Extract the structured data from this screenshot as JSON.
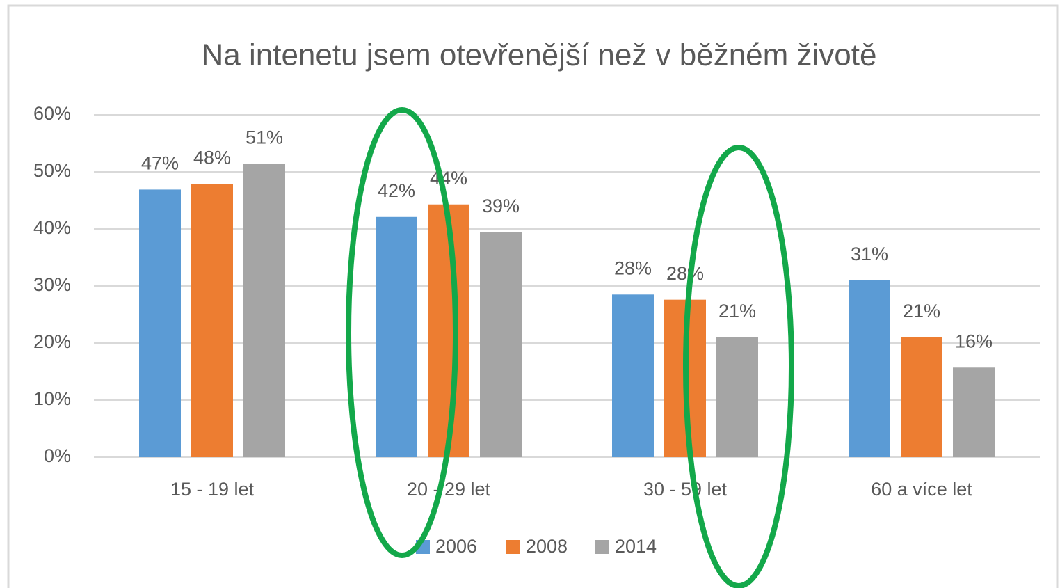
{
  "chart_data": {
    "type": "bar",
    "title": "Na intenetu jsem otevřenější než v běžném životě",
    "categories": [
      "15 - 19 let",
      "20 - 29 let",
      "30 - 59 let",
      "60 a více let"
    ],
    "series": [
      {
        "name": "2006",
        "color": "#5b9bd5",
        "values": [
          46.9,
          42.1,
          28.5,
          31.0
        ],
        "value_labels": [
          "47%",
          "42%",
          "28%",
          "31%"
        ]
      },
      {
        "name": "2008",
        "color": "#ed7d31",
        "values": [
          47.9,
          44.3,
          27.6,
          21.0
        ],
        "value_labels": [
          "48%",
          "44%",
          "28%",
          "21%"
        ]
      },
      {
        "name": "2014",
        "color": "#a5a5a5",
        "values": [
          51.4,
          39.4,
          21.0,
          15.7
        ],
        "value_labels": [
          "51%",
          "39%",
          "21%",
          "16%"
        ]
      }
    ],
    "ylim": [
      0,
      60
    ],
    "yticks": [
      {
        "value": 0,
        "label": "0%"
      },
      {
        "value": 10,
        "label": "10%"
      },
      {
        "value": 20,
        "label": "20%"
      },
      {
        "value": 30,
        "label": "30%"
      },
      {
        "value": 40,
        "label": "40%"
      },
      {
        "value": 50,
        "label": "50%"
      },
      {
        "value": 60,
        "label": "60%"
      }
    ],
    "grid": true,
    "legend": "bottom"
  }
}
